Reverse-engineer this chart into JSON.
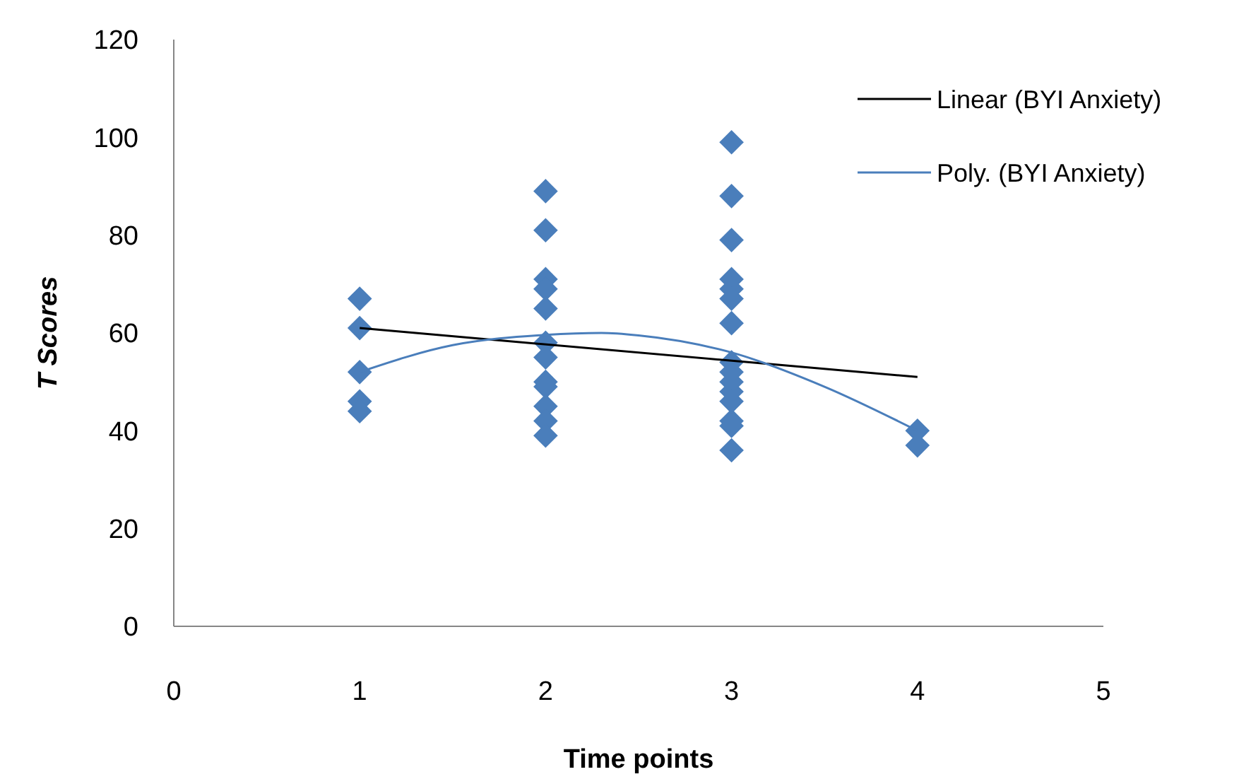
{
  "chart_data": {
    "type": "scatter",
    "xlabel": "Time points",
    "ylabel": "T Scores",
    "xlim": [
      0,
      5
    ],
    "ylim": [
      0,
      120
    ],
    "xticks": [
      0,
      1,
      2,
      3,
      4,
      5
    ],
    "yticks": [
      0,
      20,
      40,
      60,
      80,
      100,
      120
    ],
    "grid": false,
    "legend": "top right",
    "marker": "diamond",
    "series": [
      {
        "type": "scatter",
        "color": "#4a7ebb",
        "x": [
          1,
          1,
          1,
          1,
          1,
          2,
          2,
          2,
          2,
          2,
          2,
          2,
          2,
          2,
          2,
          2,
          2,
          3,
          3,
          3,
          3,
          3,
          3,
          3,
          3,
          3,
          3,
          3,
          3,
          3,
          3,
          3,
          4,
          4
        ],
        "values": [
          67,
          61,
          52,
          46,
          44,
          89,
          81,
          71,
          69,
          65,
          58,
          55,
          50,
          49,
          45,
          42,
          39,
          99,
          88,
          79,
          71,
          69,
          67,
          62,
          54,
          52,
          50,
          48,
          46,
          42,
          41,
          36,
          40,
          37
        ]
      },
      {
        "type": "line",
        "name": "Linear (BYI Anxiety)",
        "color": "#000000",
        "marker": "none",
        "x": [
          1,
          4
        ],
        "values": [
          61,
          51
        ]
      },
      {
        "type": "line",
        "name": "Poly. (BYI Anxiety)",
        "color": "#4a7ebb",
        "marker": "none",
        "x": [
          1,
          1.5,
          2,
          2.3,
          2.5,
          3,
          3.5,
          4
        ],
        "values": [
          52,
          57.5,
          59.6,
          60,
          59.5,
          56,
          49,
          40
        ]
      }
    ]
  }
}
